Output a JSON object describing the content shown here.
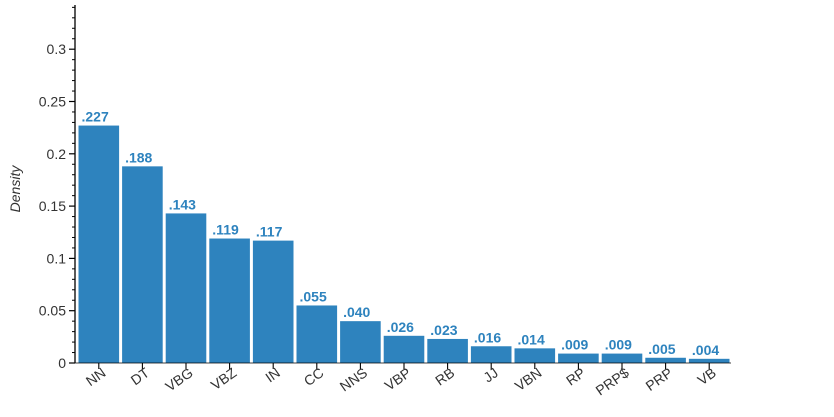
{
  "chart_data": {
    "type": "bar",
    "title": "",
    "xlabel": "",
    "ylabel": "Density",
    "categories": [
      "NN",
      "DT",
      "VBG",
      "VBZ",
      "IN",
      "CC",
      "NNS",
      "VBP",
      "RB",
      "JJ",
      "VBN",
      "RP",
      "PRP$",
      "PRP",
      "VB"
    ],
    "values": [
      0.227,
      0.188,
      0.143,
      0.119,
      0.117,
      0.055,
      0.04,
      0.026,
      0.023,
      0.016,
      0.014,
      0.009,
      0.009,
      0.005,
      0.004
    ],
    "value_labels": [
      ".227",
      ".188",
      ".143",
      ".119",
      ".117",
      ".055",
      ".040",
      ".026",
      ".023",
      ".016",
      ".014",
      ".009",
      ".009",
      ".005",
      ".004"
    ],
    "ylim": [
      0,
      0.34
    ],
    "yticks": [
      0,
      0.05,
      0.1,
      0.15,
      0.2,
      0.25,
      0.3
    ],
    "ytick_labels": [
      "0",
      "0.05",
      "0.1",
      "0.15",
      "0.2",
      "0.25",
      "0.3"
    ],
    "grid": false,
    "colors": {
      "bar": "#2e83be",
      "value_label": "#2e83be",
      "axis": "#000000"
    }
  }
}
